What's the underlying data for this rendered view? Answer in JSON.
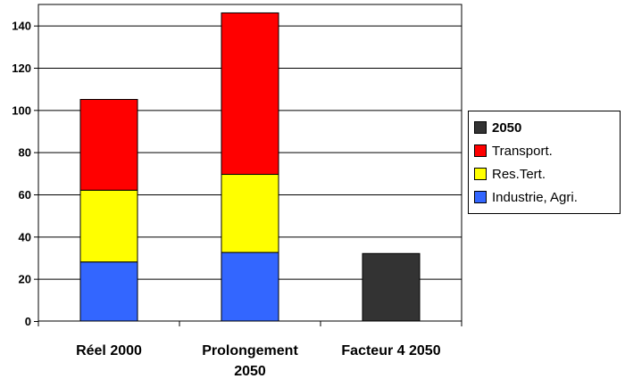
{
  "chart_data": {
    "type": "bar",
    "stacked": true,
    "categories": [
      "Réel 2000",
      "Prolongement 2050",
      "Facteur 4 2050"
    ],
    "category_lines": [
      [
        "Réel 2000"
      ],
      [
        "Prolongement",
        "2050"
      ],
      [
        "Facteur 4 2050"
      ]
    ],
    "series": [
      {
        "name": "Industrie, Agri.",
        "color": "#3366ff",
        "values": [
          28,
          32.5,
          0
        ]
      },
      {
        "name": "Res.Tert.",
        "color": "#ffff00",
        "values": [
          34,
          37,
          0
        ]
      },
      {
        "name": "Transport.",
        "color": "#ff0000",
        "values": [
          43,
          76.5,
          0
        ]
      },
      {
        "name": "2050",
        "color": "#333333",
        "values": [
          0,
          0,
          32
        ]
      }
    ],
    "legend_order": [
      "2050",
      "Transport.",
      "Res.Tert.",
      "Industrie, Agri."
    ],
    "ylim": [
      0,
      150
    ],
    "yticks": [
      0,
      20,
      40,
      60,
      80,
      100,
      120,
      140
    ],
    "grid": true,
    "legend_position": "right",
    "title": "",
    "xlabel": "",
    "ylabel": ""
  }
}
